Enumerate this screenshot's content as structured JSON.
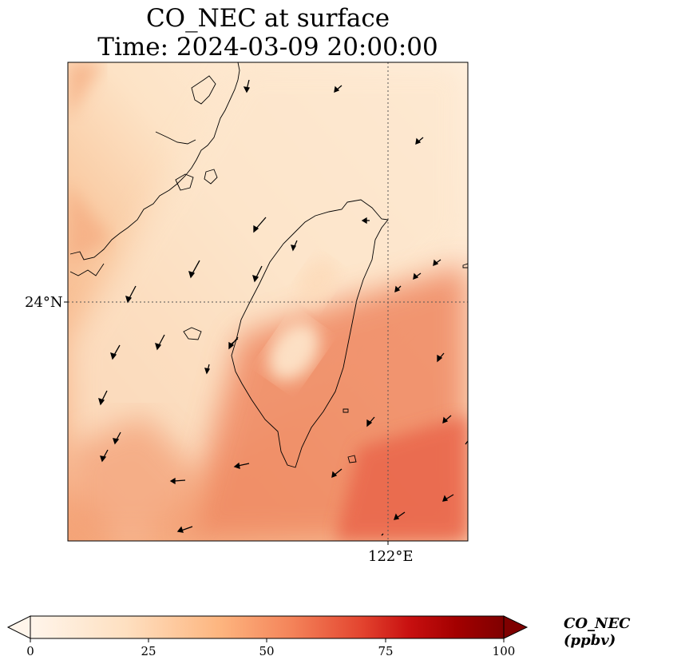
{
  "title": {
    "line1": "CO_NEC at surface",
    "line2": "Time: 2024-03-09 20:00:00"
  },
  "axes": {
    "lat_label": "24°N",
    "lon_label": "122°E",
    "gridline_style": "dotted"
  },
  "colorbar": {
    "label": "CO_NEC (ppbv)",
    "ticks": [
      "0",
      "25",
      "50",
      "75",
      "100"
    ],
    "min": 0,
    "max": 100,
    "extend": "both",
    "colormap": [
      "#fff5eb",
      "#fdd0a2",
      "#fd8d3c",
      "#d94801",
      "#b30000",
      "#7f0000"
    ]
  },
  "colors": {
    "coastline": "#000000",
    "wind_arrow": "#000000",
    "low": "#fde9d3",
    "mid": "#f6b488",
    "high": "#ec6e4e"
  }
}
